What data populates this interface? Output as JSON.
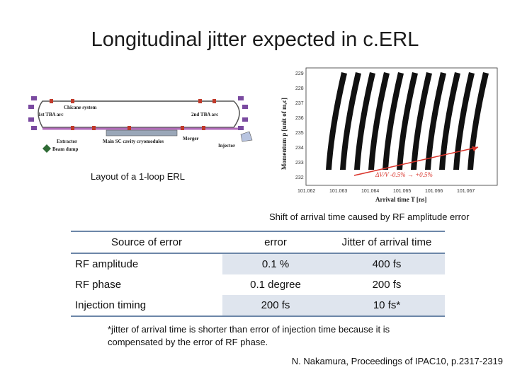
{
  "title": "Longitudinal jitter expected in c.ERL",
  "layout_figure": {
    "caption": "Layout of a 1-loop ERL",
    "labels": {
      "chicane": "Chicane system",
      "arc1": "1st TBA arc",
      "arc2": "2nd TBA arc",
      "extractor": "Extractor",
      "dump": "Beam dump",
      "cryo": "Main SC cavity cryomodules",
      "merger": "Merger",
      "injector": "Injector"
    }
  },
  "plot_figure": {
    "caption": "Shift of arrival time caused by RF amplitude error",
    "ylabel": "Momentum  p [unit of mₑc]",
    "xlabel": "Arrival time  T [ns]",
    "annotation": "ΔV/V -0.5% → +0.5%",
    "yticks": [
      "229",
      "228",
      "237",
      "236",
      "235",
      "234",
      "233",
      "232"
    ],
    "xticks": [
      "101.062",
      "101.063",
      "101.064",
      "101.065",
      "101.066",
      "101.067"
    ]
  },
  "table": {
    "headers": [
      "Source of error",
      "error",
      "Jitter of arrival time"
    ],
    "rows": [
      {
        "source": "RF amplitude",
        "error": "0.1 %",
        "jitter": "400 fs"
      },
      {
        "source": "RF phase",
        "error": "0.1  degree",
        "jitter": "200 fs"
      },
      {
        "source": "Injection timing",
        "error": "200 fs",
        "jitter": "10 fs*"
      }
    ]
  },
  "footnote": "*jitter of arrival time is shorter than error of injection time because it is compensated by the error of RF phase.",
  "reference": "N. Nakamura, Proceedings of IPAC10, p.2317-2319",
  "colors": {
    "table_rule": "#6c86a8",
    "row_shade": "#dfe5ee",
    "arrow": "#d9342b",
    "beamline": "#b06ab8"
  }
}
